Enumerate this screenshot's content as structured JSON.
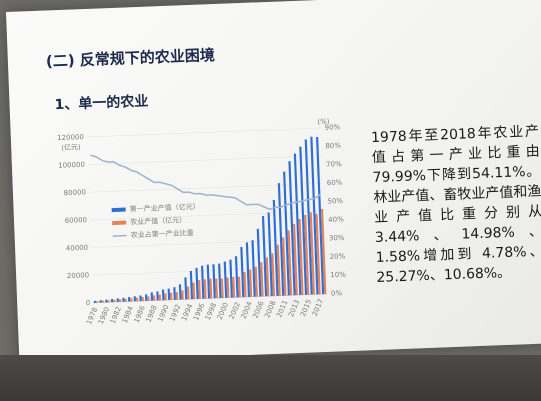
{
  "slide": {
    "title": "(二) 反常规下的农业困境",
    "subtitle": "1、单一的农业",
    "paragraph": "1978年至2018年农业产值占第一产业比重由79.99%下降到54.11%。林业产值、畜牧业产值和渔业产值比重分别从3.44%、14.98%、1.58%增加到 4.78%、25.27%、10.68%。"
  },
  "chart_data": {
    "type": "bar",
    "title": "",
    "left_unit": "(亿元)",
    "right_unit": "(%)",
    "ylim_left": [
      0,
      120000
    ],
    "ylim_right": [
      0,
      90
    ],
    "left_ticks": [
      "0",
      "20000",
      "40000",
      "60000",
      "80000",
      "100000",
      "120000"
    ],
    "right_ticks": [
      "0%",
      "10%",
      "20%",
      "30%",
      "40%",
      "50%",
      "60%",
      "70%",
      "80%",
      "90%"
    ],
    "x_tick_labels": [
      "1978",
      "1980",
      "1982",
      "1984",
      "1986",
      "1988",
      "1990",
      "1992",
      "1994",
      "1996",
      "1998",
      "2000",
      "2002",
      "2004",
      "2006",
      "2008",
      "2011",
      "2013",
      "2015",
      "2017"
    ],
    "legend": [
      "第一产业产值（亿元）",
      "农业产值（亿元）",
      "农业占第一产业比重"
    ],
    "colors": {
      "primary": "#2e6fd6",
      "agri": "#e6825a",
      "ratio": "#9fb4cc"
    },
    "x": [
      1978,
      1979,
      1980,
      1981,
      1982,
      1983,
      1984,
      1985,
      1986,
      1987,
      1988,
      1989,
      1990,
      1991,
      1992,
      1993,
      1994,
      1995,
      1996,
      1997,
      1998,
      1999,
      2000,
      2001,
      2002,
      2003,
      2004,
      2005,
      2006,
      2007,
      2008,
      2009,
      2010,
      2011,
      2012,
      2013,
      2014,
      2015,
      2016,
      2017,
      2018
    ],
    "series": [
      {
        "name": "第一产业产值（亿元）",
        "values": [
          1400,
          1700,
          1900,
          2200,
          2500,
          2800,
          3200,
          3600,
          4000,
          4700,
          5900,
          6500,
          7700,
          8200,
          9100,
          11000,
          15800,
          20300,
          22400,
          23800,
          24500,
          24500,
          24900,
          26200,
          27400,
          29700,
          36200,
          39400,
          40800,
          48900,
          58000,
          60400,
          69300,
          81300,
          89500,
          96900,
          102200,
          107100,
          112100,
          114000,
          113600
        ]
      },
      {
        "name": "农业产值（亿元）",
        "values": [
          1100,
          1300,
          1400,
          1600,
          1800,
          2000,
          2300,
          2500,
          2800,
          3100,
          3700,
          4100,
          4900,
          5100,
          5600,
          6600,
          9200,
          11900,
          13500,
          13900,
          14200,
          14100,
          13900,
          14500,
          14900,
          14900,
          18100,
          19600,
          21500,
          24700,
          28000,
          30800,
          36900,
          41900,
          46900,
          51500,
          54800,
          57600,
          59300,
          58100,
          61500
        ]
      },
      {
        "name": "农业占第一产业比重",
        "values": [
          80,
          79,
          77,
          76,
          76,
          74,
          73,
          71,
          70,
          68,
          66,
          64,
          64,
          63,
          62,
          60,
          58,
          58,
          57,
          57,
          56,
          56,
          55.5,
          55,
          54.5,
          54,
          52,
          50,
          50,
          50,
          48.5,
          47,
          48,
          48,
          49,
          50,
          50.5,
          51,
          51.5,
          52,
          54
        ]
      }
    ]
  }
}
